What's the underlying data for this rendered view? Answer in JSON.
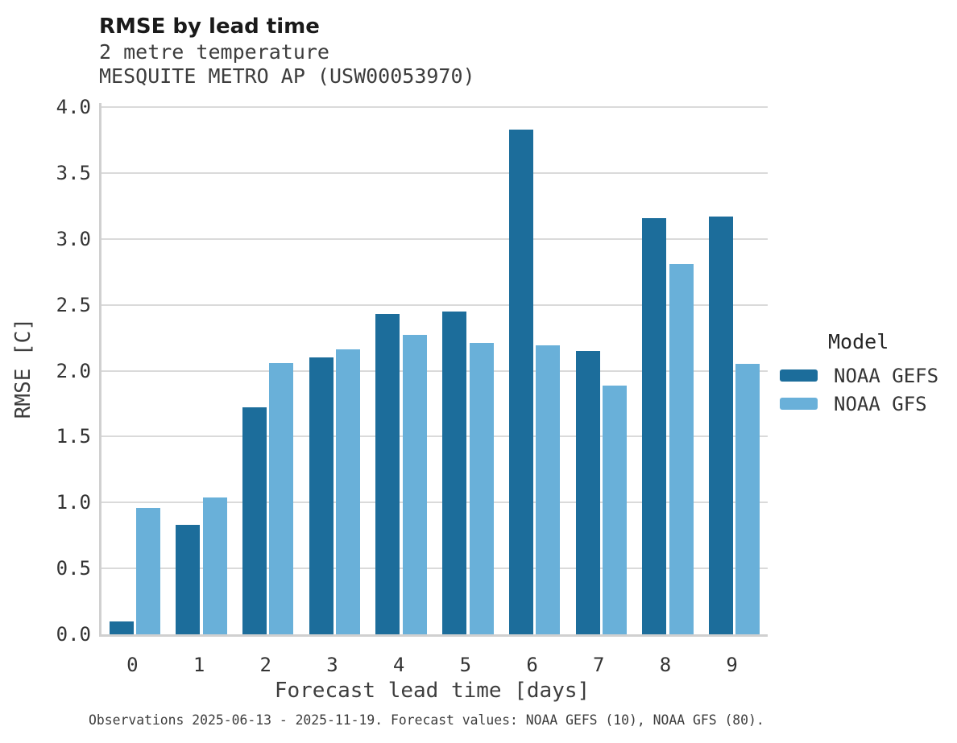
{
  "chart_data": {
    "type": "bar",
    "title": "RMSE by lead time",
    "subtitle": [
      "2 metre temperature",
      "MESQUITE METRO AP (USW00053970)"
    ],
    "xlabel": "Forecast lead time [days]",
    "ylabel": "RMSE [C]",
    "categories": [
      "0",
      "1",
      "2",
      "3",
      "4",
      "5",
      "6",
      "7",
      "8",
      "9"
    ],
    "series": [
      {
        "name": "NOAA GEFS",
        "color": "#1c6d9b",
        "values": [
          0.1,
          0.83,
          1.72,
          2.1,
          2.43,
          2.45,
          3.83,
          2.15,
          3.16,
          3.17
        ]
      },
      {
        "name": "NOAA GFS",
        "color": "#69b0d9",
        "values": [
          0.96,
          1.04,
          2.06,
          2.16,
          2.27,
          2.21,
          2.19,
          1.89,
          2.81,
          2.05
        ]
      }
    ],
    "ylim": [
      0.0,
      4.0
    ],
    "ytick_step": 0.5,
    "ytick_labels": [
      "0.0",
      "0.5",
      "1.0",
      "1.5",
      "2.0",
      "2.5",
      "3.0",
      "3.5",
      "4.0"
    ],
    "grid": true,
    "legend_position": "right",
    "legend_title": "Model",
    "caption": "Observations 2025-06-13 - 2025-11-19. Forecast values: NOAA GEFS (10), NOAA GFS (80).",
    "colors": {
      "gridline": "#dadada",
      "spine": "#d0d0d0",
      "title_text": "#1a1a1a",
      "label_text": "#3d3d3d",
      "tick_text": "#333333"
    }
  }
}
